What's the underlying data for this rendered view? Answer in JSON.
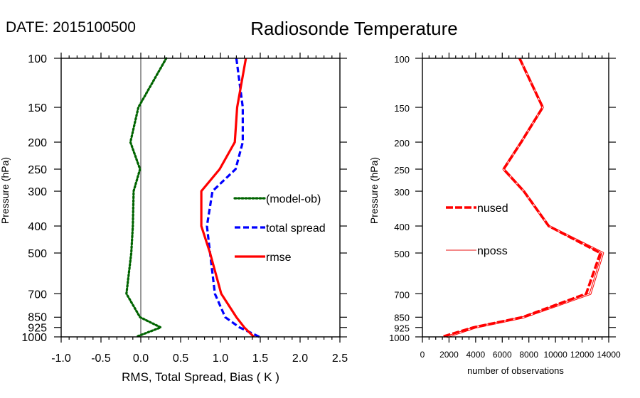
{
  "date_label": "DATE: 2015100500",
  "title": "Radiosonde Temperature",
  "chart_data": [
    {
      "type": "line",
      "name": "left-panel",
      "xlabel": "RMS, Total Spread, Bias ( K )",
      "ylabel": "Pressure (hPa)",
      "xlim": [
        -1.0,
        2.5
      ],
      "ylim": [
        100,
        1000
      ],
      "yscale": "log",
      "y_inverted": true,
      "x_ticks": [
        -1.0,
        -0.5,
        0.0,
        0.5,
        1.0,
        1.5,
        2.0,
        2.5
      ],
      "x_tick_labels": [
        "-1.0",
        "-0.5",
        "0.0",
        "0.5",
        "1.0",
        "1.5",
        "2.0",
        "2.5"
      ],
      "x_minor_step": 0.1,
      "y_ticks": [
        100,
        150,
        200,
        250,
        300,
        400,
        500,
        700,
        850,
        925,
        1000
      ],
      "y_tick_labels": [
        "100",
        "150",
        "200",
        "250",
        "300",
        "400",
        "500",
        "700",
        "850",
        "925",
        "1000"
      ],
      "reference_line_x": 0.0,
      "legend_position": "center-right",
      "series": [
        {
          "name": "(model-ob)",
          "color": "#006400",
          "style": "dotted",
          "pressure": [
            100,
            150,
            200,
            250,
            300,
            400,
            500,
            700,
            850,
            925,
            1000
          ],
          "values": [
            0.32,
            -0.03,
            -0.13,
            -0.01,
            -0.09,
            -0.1,
            -0.12,
            -0.18,
            -0.01,
            0.25,
            -0.06
          ]
        },
        {
          "name": "total spread",
          "color": "#0000ff",
          "style": "dashed",
          "pressure": [
            100,
            150,
            200,
            250,
            300,
            400,
            500,
            700,
            850,
            925,
            1000
          ],
          "values": [
            1.2,
            1.28,
            1.28,
            1.19,
            0.9,
            0.83,
            0.87,
            0.93,
            1.06,
            1.24,
            1.49
          ]
        },
        {
          "name": "rmse",
          "color": "#ff0000",
          "style": "solid",
          "pressure": [
            100,
            150,
            200,
            250,
            300,
            400,
            500,
            700,
            850,
            925,
            1000
          ],
          "values": [
            1.32,
            1.21,
            1.18,
            0.99,
            0.76,
            0.76,
            0.87,
            1.01,
            1.2,
            1.3,
            1.42
          ]
        }
      ]
    },
    {
      "type": "line",
      "name": "right-panel",
      "xlabel": "number of observations",
      "ylabel": "Pressure (hPa)",
      "xlim": [
        0,
        14000
      ],
      "ylim": [
        100,
        1000
      ],
      "yscale": "log",
      "y_inverted": true,
      "x_ticks": [
        0,
        2000,
        4000,
        6000,
        8000,
        10000,
        12000,
        14000
      ],
      "x_tick_labels": [
        "0",
        "2000",
        "4000",
        "6000",
        "8000",
        "10000",
        "12000",
        "14000"
      ],
      "x_minor_step": 500,
      "y_ticks": [
        100,
        150,
        200,
        250,
        300,
        400,
        500,
        700,
        850,
        925,
        1000
      ],
      "y_tick_labels": [
        "100",
        "150",
        "200",
        "250",
        "300",
        "400",
        "500",
        "700",
        "850",
        "925",
        "1000"
      ],
      "legend_position": "center-left",
      "series": [
        {
          "name": "nused",
          "color": "#ff0000",
          "style": "dashed-thick",
          "pressure": [
            100,
            150,
            200,
            250,
            300,
            400,
            500,
            700,
            850,
            925,
            1000
          ],
          "values": [
            7300,
            9040,
            7420,
            6100,
            7620,
            9490,
            13375,
            12305,
            7530,
            3835,
            1465
          ]
        },
        {
          "name": "nposs",
          "color": "#ff0000",
          "style": "thin",
          "pressure": [
            100,
            150,
            200,
            250,
            300,
            400,
            500,
            700,
            850,
            925,
            1000
          ],
          "values": [
            7300,
            9040,
            7420,
            6100,
            7620,
            9490,
            13555,
            12610,
            7620,
            3960,
            1820
          ]
        }
      ]
    }
  ]
}
